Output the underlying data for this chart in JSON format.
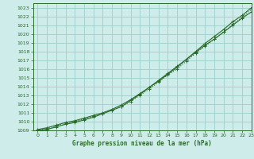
{
  "title": "",
  "xlabel": "Graphe pression niveau de la mer (hPa)",
  "ylabel": "",
  "bg_color": "#ceecea",
  "grid_color": "#9ecfca",
  "line_color": "#2a6b2a",
  "xlim": [
    -0.5,
    23
  ],
  "ylim": [
    1009,
    1023.5
  ],
  "xticks": [
    0,
    1,
    2,
    3,
    4,
    5,
    6,
    7,
    8,
    9,
    10,
    11,
    12,
    13,
    14,
    15,
    16,
    17,
    18,
    19,
    20,
    21,
    22,
    23
  ],
  "yticks": [
    1009,
    1010,
    1011,
    1012,
    1013,
    1014,
    1015,
    1016,
    1017,
    1018,
    1019,
    1020,
    1021,
    1022,
    1023
  ],
  "line1_x": [
    0,
    1,
    2,
    3,
    4,
    5,
    6,
    7,
    8,
    9,
    10,
    11,
    12,
    13,
    14,
    15,
    16,
    17,
    18,
    19,
    20,
    21,
    22,
    23
  ],
  "line1_y": [
    1009.1,
    1009.3,
    1009.6,
    1009.9,
    1010.1,
    1010.4,
    1010.7,
    1011.0,
    1011.4,
    1011.9,
    1012.5,
    1013.2,
    1013.9,
    1014.6,
    1015.4,
    1016.2,
    1017.1,
    1017.9,
    1018.7,
    1019.4,
    1020.2,
    1021.0,
    1021.8,
    1022.5
  ],
  "line2_x": [
    0,
    1,
    2,
    3,
    4,
    5,
    6,
    7,
    8,
    9,
    10,
    11,
    12,
    13,
    14,
    15,
    16,
    17,
    18,
    19,
    20,
    21,
    22,
    23
  ],
  "line2_y": [
    1009.0,
    1009.2,
    1009.5,
    1009.8,
    1010.0,
    1010.3,
    1010.6,
    1010.9,
    1011.3,
    1011.7,
    1012.3,
    1013.0,
    1013.7,
    1014.5,
    1015.3,
    1016.0,
    1016.9,
    1017.8,
    1018.6,
    1019.4,
    1020.2,
    1021.1,
    1021.9,
    1022.8
  ],
  "line3_x": [
    0,
    1,
    2,
    3,
    4,
    5,
    6,
    7,
    8,
    9,
    10,
    11,
    12,
    13,
    14,
    15,
    16,
    17,
    18,
    19,
    20,
    21,
    22,
    23
  ],
  "line3_y": [
    1009.0,
    1009.1,
    1009.4,
    1009.7,
    1009.9,
    1010.2,
    1010.5,
    1010.9,
    1011.3,
    1011.7,
    1012.4,
    1013.1,
    1013.9,
    1014.7,
    1015.5,
    1016.3,
    1017.1,
    1018.0,
    1018.9,
    1019.7,
    1020.5,
    1021.4,
    1022.1,
    1023.0
  ],
  "xlabel_fontsize": 5.5,
  "tick_fontsize": 4.5
}
